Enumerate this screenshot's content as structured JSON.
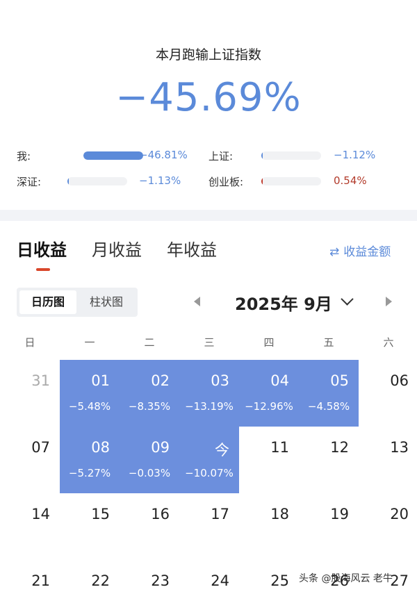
{
  "summary": {
    "title": "本月跑输上证指数",
    "value": "−45.69%",
    "comparisons": [
      {
        "label": "我:",
        "value": "−46.81%",
        "fill": 1.0,
        "color": "#5b8ad9",
        "value_color": "#5b8ad9"
      },
      {
        "label": "上证:",
        "value": "−1.12%",
        "fill": 0.024,
        "color": "#5b8ad9",
        "value_color": "#5b8ad9"
      },
      {
        "label": "深证:",
        "value": "−1.13%",
        "fill": 0.024,
        "color": "#5b8ad9",
        "value_color": "#5b8ad9"
      },
      {
        "label": "创业板:",
        "value": "0.54%",
        "fill": 0.012,
        "color": "#c0392b",
        "value_color": "#b23a2a"
      }
    ]
  },
  "tabs": [
    {
      "label": "日收益",
      "active": true
    },
    {
      "label": "月收益",
      "active": false
    },
    {
      "label": "年收益",
      "active": false
    }
  ],
  "switch_amount": {
    "icon": "swap-icon",
    "glyph": "⇄",
    "label": "收益金额"
  },
  "view_toggle": [
    {
      "label": "日历图",
      "active": true
    },
    {
      "label": "柱状图",
      "active": false
    }
  ],
  "month": "2025年 9月",
  "weekdays": [
    "日",
    "一",
    "二",
    "三",
    "四",
    "五",
    "六"
  ],
  "calendar": [
    [
      {
        "day": "31",
        "muted": true
      },
      {
        "day": "01",
        "pct": "−5.48%",
        "hl": true
      },
      {
        "day": "02",
        "pct": "−8.35%",
        "hl": true
      },
      {
        "day": "03",
        "pct": "−13.19%",
        "hl": true
      },
      {
        "day": "04",
        "pct": "−12.96%",
        "hl": true
      },
      {
        "day": "05",
        "pct": "−4.58%",
        "hl": true
      },
      {
        "day": "06"
      }
    ],
    [
      {
        "day": "07"
      },
      {
        "day": "08",
        "pct": "−5.27%",
        "hl": true
      },
      {
        "day": "09",
        "pct": "−0.03%",
        "hl": true
      },
      {
        "day": "今",
        "pct": "−10.07%",
        "hl": true
      },
      {
        "day": "11"
      },
      {
        "day": "12"
      },
      {
        "day": "13"
      }
    ],
    [
      {
        "day": "14"
      },
      {
        "day": "15"
      },
      {
        "day": "16"
      },
      {
        "day": "17"
      },
      {
        "day": "18"
      },
      {
        "day": "19"
      },
      {
        "day": "20"
      }
    ],
    [
      {
        "day": "21"
      },
      {
        "day": "22"
      },
      {
        "day": "23"
      },
      {
        "day": "24"
      },
      {
        "day": "25"
      },
      {
        "day": "26"
      },
      {
        "day": "27"
      }
    ]
  ],
  "watermark": "头条 @股海风云  老牛"
}
